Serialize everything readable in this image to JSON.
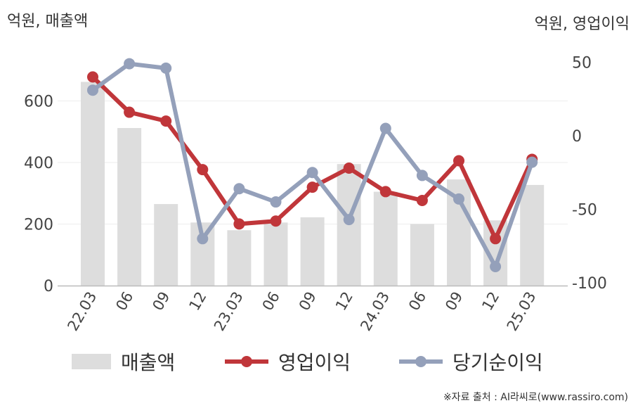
{
  "units": {
    "left": "억원, 매출액",
    "right": "억원, 영업이익"
  },
  "chart_data": {
    "type": "bar+line",
    "categories": [
      "22.03",
      "06",
      "09",
      "12",
      "23.03",
      "06",
      "09",
      "12",
      "24.03",
      "06",
      "09",
      "12",
      "25.03"
    ],
    "left_axis": {
      "ticks": [
        "0",
        "200",
        "400",
        "600"
      ],
      "ylim": [
        0,
        720
      ]
    },
    "right_axis": {
      "ticks": [
        "-100",
        "-50",
        "0",
        "50"
      ],
      "ylim": [
        -100,
        55
      ]
    },
    "gridlines": true,
    "legend_position": "bottom",
    "series": [
      {
        "name": "매출액",
        "type": "bar",
        "axis": "left",
        "color": "#dddddd",
        "values": [
          662,
          512,
          265,
          205,
          180,
          205,
          222,
          395,
          305,
          200,
          345,
          212,
          327
        ]
      },
      {
        "name": "영업이익",
        "type": "line",
        "axis": "right",
        "color": "#c0363a",
        "values": [
          40,
          16,
          10,
          -23,
          -60,
          -58,
          -35,
          -22,
          -38,
          -44,
          -17,
          -70,
          -16
        ]
      },
      {
        "name": "당기순이익",
        "type": "line",
        "axis": "right",
        "color": "#94a0ba",
        "values": [
          31,
          49,
          46,
          -70,
          -36,
          -45,
          -25,
          -57,
          5,
          -27,
          -43,
          -89,
          -18
        ]
      }
    ]
  },
  "source": "※자료 출처 : AI라씨로(www.rassiro.com)"
}
